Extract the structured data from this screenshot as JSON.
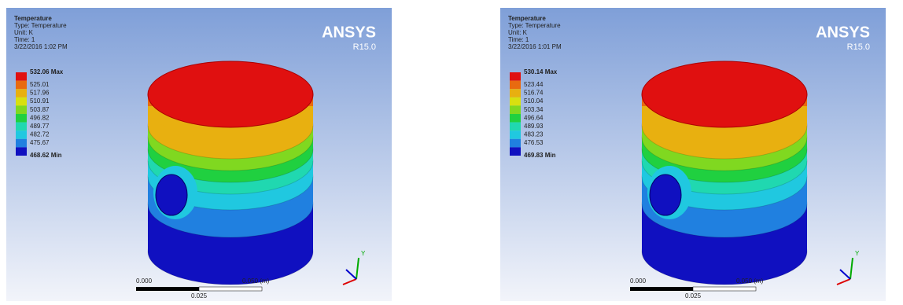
{
  "panels": [
    {
      "title": "Temperature",
      "type_line": "Type: Temperature",
      "unit": "Unit: K",
      "time": "Time: 1",
      "date": "3/22/2016 1:02 PM",
      "legend": [
        {
          "label": "532.06 Max",
          "color": "#e01010"
        },
        {
          "label": "525.01",
          "color": "#e86a10"
        },
        {
          "label": "517.96",
          "color": "#e8b010"
        },
        {
          "label": "510.91",
          "color": "#d8e010"
        },
        {
          "label": "503.87",
          "color": "#80d820"
        },
        {
          "label": "496.82",
          "color": "#20d040"
        },
        {
          "label": "489.77",
          "color": "#20d8b0"
        },
        {
          "label": "482.72",
          "color": "#20c8e0"
        },
        {
          "label": "475.67",
          "color": "#2080e0"
        },
        {
          "label": "468.62 Min",
          "color": "#1010c0"
        }
      ],
      "brand": "ANSYS",
      "version": "R15.0",
      "scale_start": "0.000",
      "scale_end": "0.050 (m)",
      "scale_mid": "0.025",
      "axis_y": "Y"
    },
    {
      "title": "Temperature",
      "type_line": "Type: Temperature",
      "unit": "Unit: K",
      "time": "Time: 1",
      "date": "3/22/2016 1:01 PM",
      "legend": [
        {
          "label": "530.14 Max",
          "color": "#e01010"
        },
        {
          "label": "523.44",
          "color": "#e86a10"
        },
        {
          "label": "516.74",
          "color": "#e8b010"
        },
        {
          "label": "510.04",
          "color": "#d8e010"
        },
        {
          "label": "503.34",
          "color": "#80d820"
        },
        {
          "label": "496.64",
          "color": "#20d040"
        },
        {
          "label": "489.93",
          "color": "#20d8b0"
        },
        {
          "label": "483.23",
          "color": "#20c8e0"
        },
        {
          "label": "476.53",
          "color": "#2080e0"
        },
        {
          "label": "469.83 Min",
          "color": "#1010c0"
        }
      ],
      "brand": "ANSYS",
      "version": "R15.0",
      "scale_start": "0.000",
      "scale_end": "0.050 (m)",
      "scale_mid": "0.025",
      "axis_y": "Y"
    }
  ]
}
